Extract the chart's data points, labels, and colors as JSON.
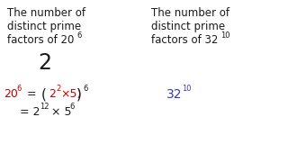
{
  "bg_color": "#ffffff",
  "red_color": "#cc0000",
  "blue_color": "#3636b8",
  "black_color": "#1a1a1a",
  "left_header_lines": [
    "The number of",
    "distinct prime",
    "factors of 20"
  ],
  "left_header_exp": "6",
  "right_header_lines": [
    "The number of",
    "distinct prime",
    "factors of 32"
  ],
  "right_header_exp": "10",
  "answer": "2",
  "hdr_fs": 8.5,
  "ans_fs": 17,
  "eq_fs": 9.0,
  "sup_fs": 6.0
}
